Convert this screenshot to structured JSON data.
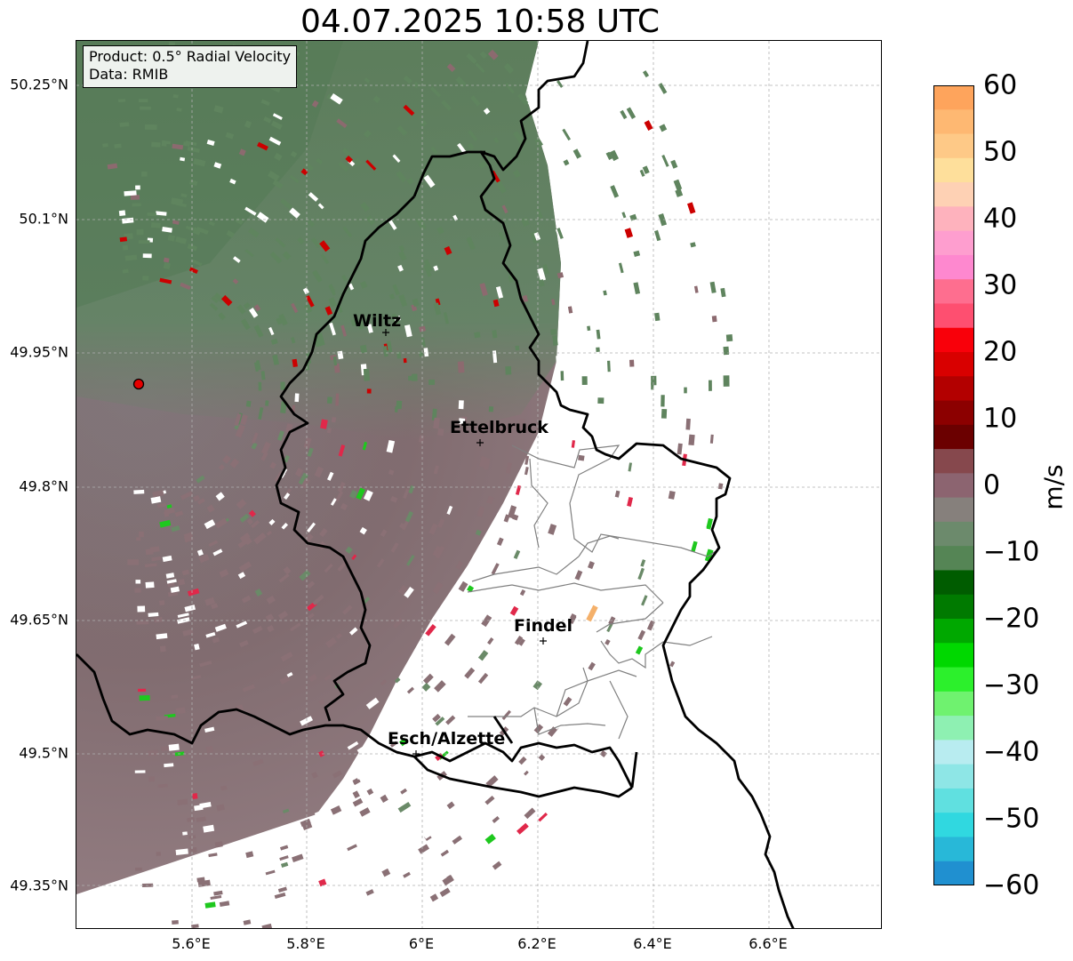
{
  "title": "04.07.2025 10:58 UTC",
  "info": {
    "product": "Product: 0.5° Radial Velocity",
    "source": "Data: RMIB"
  },
  "axes": {
    "lat_ticks": [
      "50.25°N",
      "50.1°N",
      "49.95°N",
      "49.8°N",
      "49.65°N",
      "49.5°N",
      "49.35°N"
    ],
    "lon_ticks": [
      "5.6°E",
      "5.8°E",
      "6°E",
      "6.2°E",
      "6.4°E",
      "6.6°E"
    ]
  },
  "cities": [
    {
      "name": "Wiltz"
    },
    {
      "name": "Ettelbruck"
    },
    {
      "name": "Findel"
    },
    {
      "name": "Esch/Alzette"
    }
  ],
  "colorbar": {
    "label": "m/s",
    "ticks": [
      "60",
      "50",
      "40",
      "30",
      "20",
      "10",
      "0",
      "−10",
      "−20",
      "−30",
      "−40",
      "−50",
      "−60"
    ],
    "colors": [
      "#fea45c",
      "#feb872",
      "#fec987",
      "#fedf9b",
      "#fed1b4",
      "#feb2bd",
      "#fe9ecf",
      "#fe88cf",
      "#fe6e8f",
      "#fe4f70",
      "#f9000a",
      "#d90000",
      "#b30000",
      "#8c0000",
      "#6b0000",
      "#86484d",
      "#8c6470",
      "#86807c",
      "#6c8a6c",
      "#558555",
      "#005c00",
      "#007a00",
      "#00a800",
      "#00d800",
      "#2cf02c",
      "#6ff26f",
      "#8ef0b2",
      "#b8ecf0",
      "#8ee6e6",
      "#60e0e0",
      "#30d8e0",
      "#28b8d8",
      "#2090d0"
    ]
  },
  "radar_marker_color": "#e60000"
}
